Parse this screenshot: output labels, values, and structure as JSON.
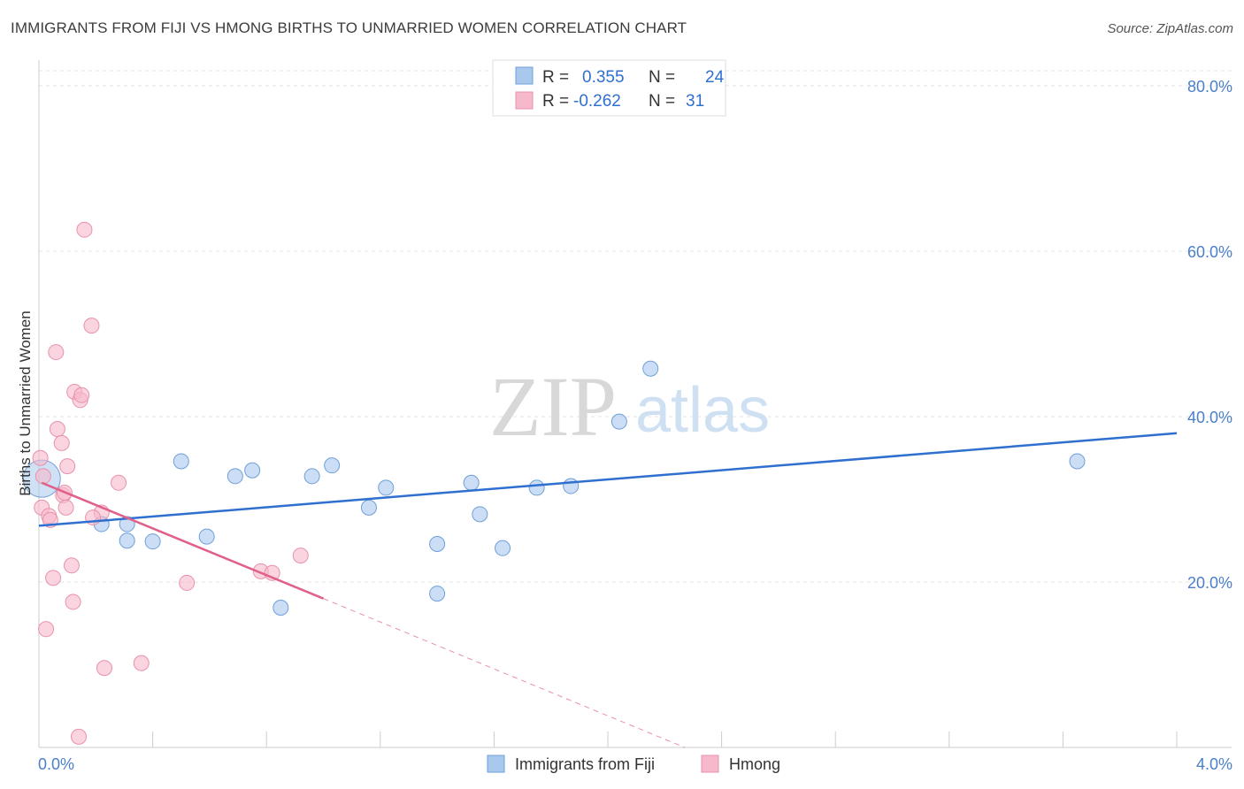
{
  "header": {
    "title": "IMMIGRANTS FROM FIJI VS HMONG BIRTHS TO UNMARRIED WOMEN CORRELATION CHART",
    "source": "Source: ZipAtlas.com"
  },
  "watermark": {
    "zip": "ZIP",
    "atlas": "atlas"
  },
  "legend": {
    "rows": [
      {
        "r_label": "R =",
        "r_value": "0.355",
        "n_label": "N =",
        "n_value": "24",
        "color": "#a9c8ee"
      },
      {
        "r_label": "R =",
        "r_value": "-0.262",
        "n_label": "N =",
        "n_value": "31",
        "color": "#f6b9cb"
      }
    ]
  },
  "chart_data": {
    "type": "scatter",
    "title": "IMMIGRANTS FROM FIJI VS HMONG BIRTHS TO UNMARRIED WOMEN CORRELATION CHART",
    "xlabel": "",
    "ylabel": "Births to Unmarried Women",
    "xlim": [
      0,
      4.0
    ],
    "ylim": [
      0,
      80
    ],
    "x_tick_labels": [
      "0.0%",
      "4.0%"
    ],
    "y_ticks": [
      20,
      40,
      60,
      80
    ],
    "y_tick_labels": [
      "20.0%",
      "40.0%",
      "60.0%",
      "80.0%"
    ],
    "grid": true,
    "legend_position": "top-center",
    "series": [
      {
        "name": "Immigrants from Fiji",
        "color": "#a9c8ee",
        "stroke": "#6f9fd8",
        "line_color": "#2f6fcf",
        "trend": {
          "x": [
            0.0,
            4.0
          ],
          "y": [
            26.8,
            38.0
          ]
        },
        "points": [
          {
            "x": 0.01,
            "y": 32.5,
            "big": true
          },
          {
            "x": 0.22,
            "y": 27.0
          },
          {
            "x": 0.31,
            "y": 27.0
          },
          {
            "x": 0.31,
            "y": 25.0
          },
          {
            "x": 0.4,
            "y": 24.9
          },
          {
            "x": 0.5,
            "y": 34.6
          },
          {
            "x": 0.59,
            "y": 25.5
          },
          {
            "x": 0.69,
            "y": 32.8
          },
          {
            "x": 0.75,
            "y": 33.5
          },
          {
            "x": 0.85,
            "y": 16.9
          },
          {
            "x": 0.96,
            "y": 32.8
          },
          {
            "x": 1.03,
            "y": 34.1
          },
          {
            "x": 1.16,
            "y": 29.0
          },
          {
            "x": 1.22,
            "y": 31.4
          },
          {
            "x": 1.4,
            "y": 18.6
          },
          {
            "x": 1.4,
            "y": 24.6
          },
          {
            "x": 1.52,
            "y": 32.0
          },
          {
            "x": 1.55,
            "y": 28.2
          },
          {
            "x": 1.63,
            "y": 24.1
          },
          {
            "x": 1.75,
            "y": 31.4
          },
          {
            "x": 1.87,
            "y": 31.6
          },
          {
            "x": 2.04,
            "y": 39.4
          },
          {
            "x": 2.15,
            "y": 45.8
          },
          {
            "x": 3.65,
            "y": 34.6
          }
        ]
      },
      {
        "name": "Hmong",
        "color": "#f6b9cb",
        "stroke": "#e891ab",
        "line_color": "#e0608a",
        "trend": {
          "x": [
            0.01,
            1.0
          ],
          "y": [
            32.0,
            18.0
          ]
        },
        "trend_dashed": {
          "x": [
            1.0,
            2.27
          ],
          "y": [
            18.0,
            0.0
          ]
        },
        "points": [
          {
            "x": 0.005,
            "y": 35.0
          },
          {
            "x": 0.01,
            "y": 29.0
          },
          {
            "x": 0.015,
            "y": 32.8
          },
          {
            "x": 0.025,
            "y": 14.3
          },
          {
            "x": 0.035,
            "y": 28.0
          },
          {
            "x": 0.04,
            "y": 27.5
          },
          {
            "x": 0.05,
            "y": 20.5
          },
          {
            "x": 0.06,
            "y": 47.8
          },
          {
            "x": 0.065,
            "y": 38.5
          },
          {
            "x": 0.08,
            "y": 36.8
          },
          {
            "x": 0.085,
            "y": 30.5
          },
          {
            "x": 0.09,
            "y": 30.8
          },
          {
            "x": 0.095,
            "y": 29.0
          },
          {
            "x": 0.1,
            "y": 34.0
          },
          {
            "x": 0.115,
            "y": 22.0
          },
          {
            "x": 0.12,
            "y": 17.6
          },
          {
            "x": 0.125,
            "y": 43.0
          },
          {
            "x": 0.14,
            "y": 1.3
          },
          {
            "x": 0.145,
            "y": 42.0
          },
          {
            "x": 0.15,
            "y": 42.6
          },
          {
            "x": 0.16,
            "y": 62.6
          },
          {
            "x": 0.185,
            "y": 51.0
          },
          {
            "x": 0.22,
            "y": 28.4
          },
          {
            "x": 0.23,
            "y": 9.6
          },
          {
            "x": 0.28,
            "y": 32.0
          },
          {
            "x": 0.36,
            "y": 10.2
          },
          {
            "x": 0.52,
            "y": 19.9
          },
          {
            "x": 0.78,
            "y": 21.3
          },
          {
            "x": 0.82,
            "y": 21.1
          },
          {
            "x": 0.92,
            "y": 23.2
          },
          {
            "x": 0.19,
            "y": 27.8
          }
        ]
      }
    ]
  }
}
